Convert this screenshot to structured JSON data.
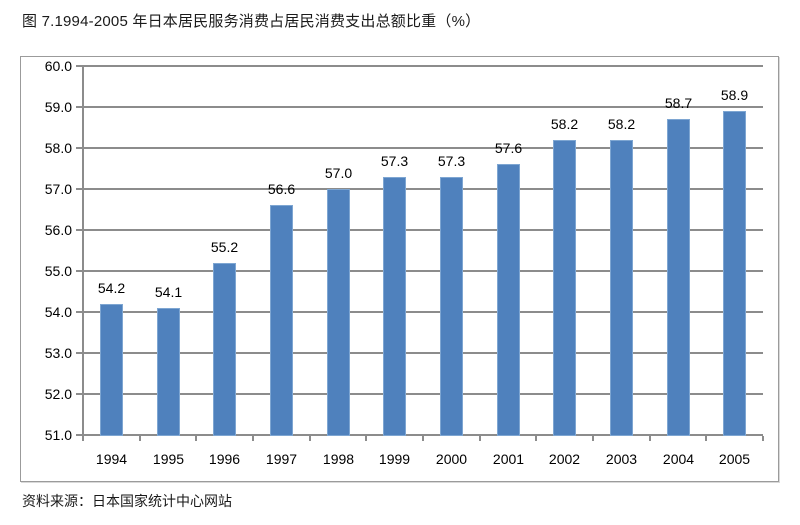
{
  "figure": {
    "title": "图 7.1994-2005 年日本居民服务消费占居民消费支出总额比重（%）",
    "source": "资料来源：日本国家统计中心网站"
  },
  "colors": {
    "bar_fill": "#4f81bd",
    "bar_border": "#7ea6d2",
    "gridline": "#8c8c8c",
    "axis": "#8c8c8c",
    "frame_border": "#9b9b9b",
    "text": "#000000"
  },
  "chart_data": {
    "type": "bar",
    "title": "图 7.1994-2005 年日本居民服务消费占居民消费支出总额比重（%）",
    "categories": [
      "1994",
      "1995",
      "1996",
      "1997",
      "1998",
      "1999",
      "2000",
      "2001",
      "2002",
      "2003",
      "2004",
      "2005"
    ],
    "values": [
      54.2,
      54.1,
      55.2,
      56.6,
      57.0,
      57.3,
      57.3,
      57.6,
      58.2,
      58.2,
      58.7,
      58.9
    ],
    "data_labels": [
      "54.2",
      "54.1",
      "55.2",
      "56.6",
      "57.0",
      "57.3",
      "57.3",
      "57.6",
      "58.2",
      "58.2",
      "58.7",
      "58.9"
    ],
    "xlabel": "",
    "ylabel": "",
    "ylim": [
      51.0,
      60.0
    ],
    "ytick_step": 1.0,
    "ytick_labels": [
      "51.0",
      "52.0",
      "53.0",
      "54.0",
      "55.0",
      "56.0",
      "57.0",
      "58.0",
      "59.0",
      "60.0"
    ],
    "grid": true,
    "legend_position": "none",
    "source": "资料来源：日本国家统计中心网站"
  }
}
